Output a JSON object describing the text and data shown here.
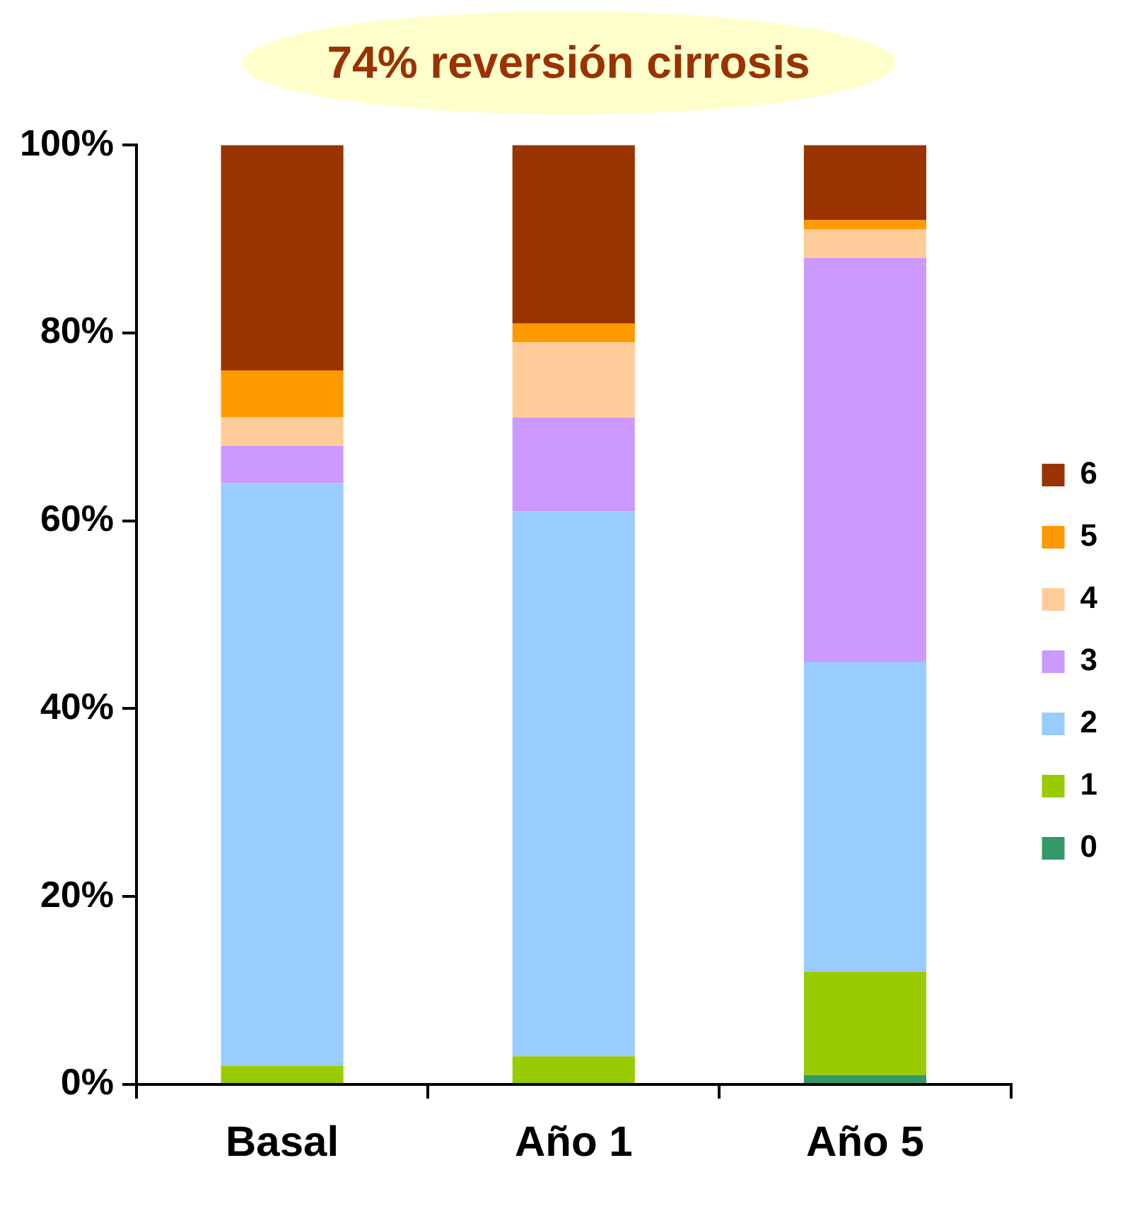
{
  "chart_data": {
    "type": "bar",
    "stacked": true,
    "categories": [
      "Basal",
      "Año 1",
      "Año 5"
    ],
    "series": [
      {
        "name": "0",
        "color": "#339966",
        "values": [
          0,
          0,
          1
        ]
      },
      {
        "name": "1",
        "color": "#99cc00",
        "values": [
          2,
          3,
          11
        ]
      },
      {
        "name": "2",
        "color": "#99ccff",
        "values": [
          62,
          58,
          33
        ]
      },
      {
        "name": "3",
        "color": "#cc99ff",
        "values": [
          4,
          10,
          43
        ]
      },
      {
        "name": "4",
        "color": "#ffcc99",
        "values": [
          3,
          8,
          3
        ]
      },
      {
        "name": "5",
        "color": "#ff9900",
        "values": [
          5,
          2,
          1
        ]
      },
      {
        "name": "6",
        "color": "#993300",
        "values": [
          24,
          19,
          8
        ]
      }
    ],
    "ylim": [
      0,
      100
    ],
    "yticks": [
      {
        "value": 0,
        "label": "0%"
      },
      {
        "value": 20,
        "label": "20%"
      },
      {
        "value": 40,
        "label": "40%"
      },
      {
        "value": 60,
        "label": "60%"
      },
      {
        "value": 80,
        "label": "80%"
      },
      {
        "value": 100,
        "label": "100%"
      }
    ],
    "legend": "right",
    "annotations": [
      "74% reversión cirrosis"
    ]
  }
}
